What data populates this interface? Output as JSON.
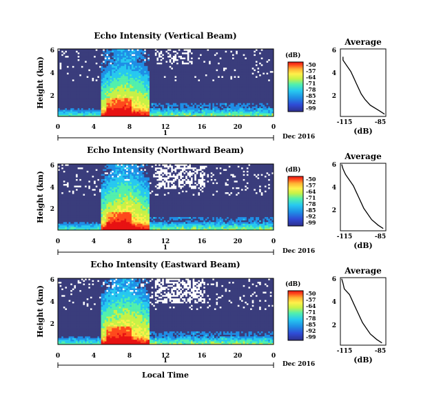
{
  "figure": {
    "x_axis_label": "Local Time",
    "date_label": "Dec 2016",
    "day_marker": "1",
    "colorbar_unit": "(dB)",
    "colorbar_ticks": [
      "-50",
      "-57",
      "-64",
      "-71",
      "-78",
      "-85",
      "-92",
      "-99"
    ],
    "average_title": "Average",
    "average_xlabel": "(dB)",
    "colors": {
      "background": "#3a3d7c",
      "colormap": [
        "#2e2f8c",
        "#2f4bd6",
        "#1f8fe6",
        "#27c9f0",
        "#52f0ad",
        "#c7f247",
        "#fff04a",
        "#ffb133",
        "#ff4a1c",
        "#e81212"
      ]
    }
  },
  "chart_data": [
    {
      "type": "heatmap",
      "title": "Echo Intensity (Vertical Beam)",
      "xlabel": "",
      "ylabel": "Height (km)",
      "x_ticks": [
        "0",
        "4",
        "8",
        "12",
        "16",
        "20",
        "0"
      ],
      "x_range_hours": [
        0,
        24
      ],
      "y_ticks": [
        "2",
        "4",
        "6"
      ],
      "y_range_km": [
        0,
        6
      ],
      "value_range_db": [
        -99,
        -50
      ],
      "average_profile": {
        "x_ticks": [
          "-115",
          "-85"
        ],
        "y_ticks": [
          "2",
          "4",
          "6"
        ],
        "xlim_db": [
          -120,
          -85
        ],
        "ylim_km": [
          0,
          6
        ],
        "height_km": [
          0.2,
          0.5,
          1.0,
          1.5,
          2.0,
          2.5,
          3.0,
          3.5,
          4.0,
          4.5,
          5.0,
          5.3
        ],
        "db": [
          -86,
          -90,
          -97,
          -101,
          -104,
          -106,
          -108,
          -110,
          -112,
          -115,
          -118,
          -118
        ]
      }
    },
    {
      "type": "heatmap",
      "title": "Echo Intensity (Northward Beam)",
      "xlabel": "",
      "ylabel": "Height (km)",
      "x_ticks": [
        "0",
        "4",
        "8",
        "12",
        "16",
        "20",
        "0"
      ],
      "x_range_hours": [
        0,
        24
      ],
      "y_ticks": [
        "2",
        "4",
        "6"
      ],
      "y_range_km": [
        0,
        6
      ],
      "value_range_db": [
        -99,
        -50
      ],
      "average_profile": {
        "x_ticks": [
          "-115",
          "-85"
        ],
        "y_ticks": [
          "2",
          "4",
          "6"
        ],
        "xlim_db": [
          -120,
          -85
        ],
        "ylim_km": [
          0,
          6
        ],
        "height_km": [
          0.2,
          0.5,
          1.0,
          1.5,
          2.0,
          2.5,
          3.0,
          3.5,
          4.0,
          4.5,
          5.0,
          5.5,
          5.9
        ],
        "db": [
          -87,
          -91,
          -96,
          -99,
          -102,
          -104,
          -106,
          -108,
          -110,
          -113,
          -116,
          -118,
          -119
        ]
      }
    },
    {
      "type": "heatmap",
      "title": "Echo Intensity (Eastward Beam)",
      "xlabel": "Local Time",
      "ylabel": "Height (km)",
      "x_ticks": [
        "0",
        "4",
        "8",
        "12",
        "16",
        "20",
        "0"
      ],
      "x_range_hours": [
        0,
        24
      ],
      "y_ticks": [
        "2",
        "4",
        "6"
      ],
      "y_range_km": [
        0,
        6
      ],
      "value_range_db": [
        -99,
        -50
      ],
      "average_profile": {
        "x_ticks": [
          "-115",
          "-85"
        ],
        "y_ticks": [
          "2",
          "4",
          "6"
        ],
        "xlim_db": [
          -120,
          -85
        ],
        "ylim_km": [
          0,
          6
        ],
        "height_km": [
          0.2,
          0.5,
          1.0,
          1.5,
          2.0,
          2.5,
          3.0,
          3.5,
          4.0,
          4.5,
          5.0,
          5.5,
          5.9
        ],
        "db": [
          -88,
          -92,
          -97,
          -100,
          -103,
          -105,
          -107,
          -109,
          -111,
          -113,
          -117,
          -118,
          -119
        ]
      }
    }
  ]
}
